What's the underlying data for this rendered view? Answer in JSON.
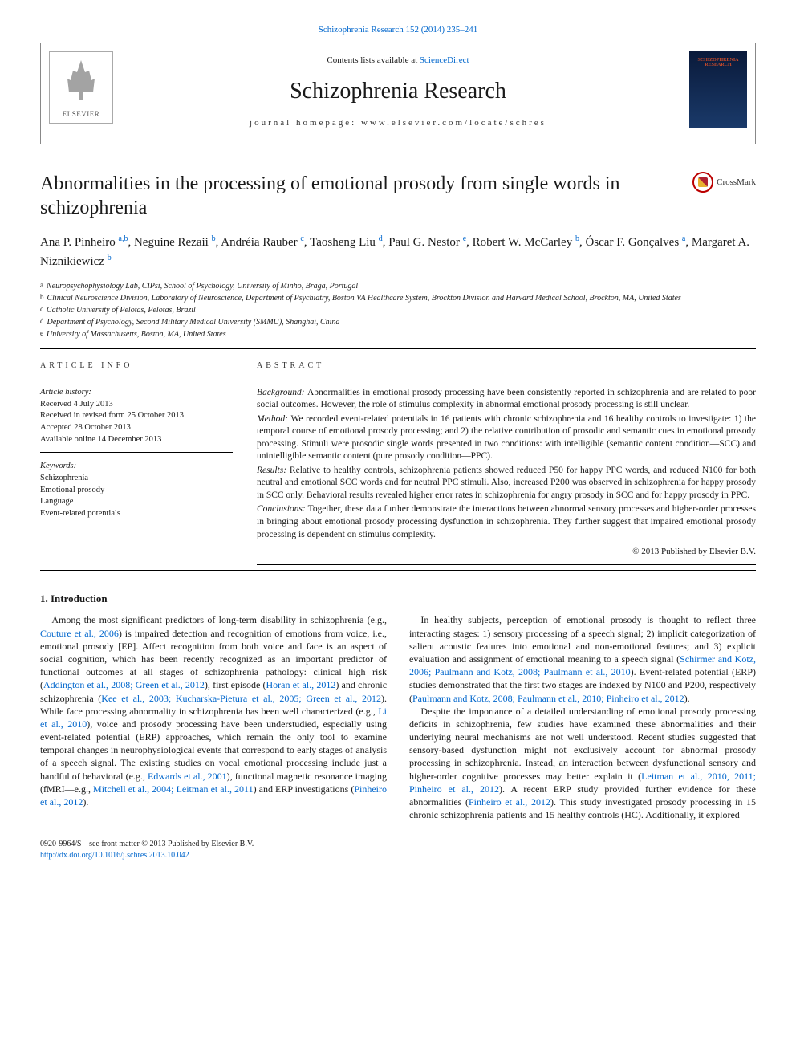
{
  "top_link": {
    "text": "Schizophrenia Research 152 (2014) 235–241"
  },
  "header": {
    "contents_prefix": "Contents lists available at ",
    "contents_link": "ScienceDirect",
    "journal_name": "Schizophrenia Research",
    "homepage_prefix": "journal homepage: ",
    "homepage_url": "www.elsevier.com/locate/schres",
    "elsevier_label": "ELSEVIER",
    "cover_text": "SCHIZOPHRENIA RESEARCH"
  },
  "crossmark_label": "CrossMark",
  "article": {
    "title": "Abnormalities in the processing of emotional prosody from single words in schizophrenia",
    "authors_html_parts": [
      {
        "name": "Ana P. Pinheiro ",
        "sup": "a,b"
      },
      {
        "name": ", Neguine Rezaii ",
        "sup": "b"
      },
      {
        "name": ", Andréia Rauber ",
        "sup": "c"
      },
      {
        "name": ", Taosheng Liu ",
        "sup": "d"
      },
      {
        "name": ", Paul G. Nestor ",
        "sup": "e"
      },
      {
        "name": ", Robert W. McCarley ",
        "sup": "b"
      },
      {
        "name": ", Óscar F. Gonçalves ",
        "sup": "a"
      },
      {
        "name": ", Margaret A. Niznikiewicz ",
        "sup": "b"
      }
    ],
    "affiliations": [
      {
        "sup": "a",
        "text": "Neuropsychophysiology Lab, CIPsi, School of Psychology, University of Minho, Braga, Portugal"
      },
      {
        "sup": "b",
        "text": "Clinical Neuroscience Division, Laboratory of Neuroscience, Department of Psychiatry, Boston VA Healthcare System, Brockton Division and Harvard Medical School, Brockton, MA, United States"
      },
      {
        "sup": "c",
        "text": "Catholic University of Pelotas, Pelotas, Brazil"
      },
      {
        "sup": "d",
        "text": "Department of Psychology, Second Military Medical University (SMMU), Shanghai, China"
      },
      {
        "sup": "e",
        "text": "University of Massachusetts, Boston, MA, United States"
      }
    ]
  },
  "info": {
    "heading": "article info",
    "history_label": "Article history:",
    "history": [
      "Received 4 July 2013",
      "Received in revised form 25 October 2013",
      "Accepted 28 October 2013",
      "Available online 14 December 2013"
    ],
    "keywords_label": "Keywords:",
    "keywords": [
      "Schizophrenia",
      "Emotional prosody",
      "Language",
      "Event-related potentials"
    ]
  },
  "abstract": {
    "heading": "abstract",
    "paras": [
      {
        "label": "Background: ",
        "text": "Abnormalities in emotional prosody processing have been consistently reported in schizophrenia and are related to poor social outcomes. However, the role of stimulus complexity in abnormal emotional prosody processing is still unclear."
      },
      {
        "label": "Method: ",
        "text": "We recorded event-related potentials in 16 patients with chronic schizophrenia and 16 healthy controls to investigate: 1) the temporal course of emotional prosody processing; and 2) the relative contribution of prosodic and semantic cues in emotional prosody processing. Stimuli were prosodic single words presented in two conditions: with intelligible (semantic content condition—SCC) and unintelligible semantic content (pure prosody condition—PPC)."
      },
      {
        "label": "Results: ",
        "text": "Relative to healthy controls, schizophrenia patients showed reduced P50 for happy PPC words, and reduced N100 for both neutral and emotional SCC words and for neutral PPC stimuli. Also, increased P200 was observed in schizophrenia for happy prosody in SCC only. Behavioral results revealed higher error rates in schizophrenia for angry prosody in SCC and for happy prosody in PPC."
      },
      {
        "label": "Conclusions: ",
        "text": "Together, these data further demonstrate the interactions between abnormal sensory processes and higher-order processes in bringing about emotional prosody processing dysfunction in schizophrenia. They further suggest that impaired emotional prosody processing is dependent on stimulus complexity."
      }
    ],
    "copyright": "© 2013 Published by Elsevier B.V."
  },
  "body": {
    "section_heading": "1. Introduction",
    "p1_a": "Among the most significant predictors of long-term disability in schizophrenia (e.g., ",
    "p1_ref1": "Couture et al., 2006",
    "p1_b": ") is impaired detection and recognition of emotions from voice, i.e., emotional prosody [EP]. Affect recognition from both voice and face is an aspect of social cognition, which has been recently recognized as an important predictor of functional outcomes at all stages of schizophrenia pathology: clinical high risk (",
    "p1_ref2": "Addington et al., 2008; Green et al., 2012",
    "p1_c": "), first episode (",
    "p1_ref3": "Horan et al., 2012",
    "p1_d": ") and chronic schizophrenia (",
    "p1_ref4": "Kee et al., 2003; Kucharska-Pietura et al., 2005; Green et al., 2012",
    "p1_e": "). While face processing abnormality in schizophrenia has been well characterized (e.g., ",
    "p1_ref5": "Li et al., 2010",
    "p1_f": "), voice and prosody processing have been understudied, especially using event-related potential (ERP) approaches, which remain the only tool to examine temporal changes in neurophysiological events that correspond to early stages of analysis of a speech signal. The existing studies on vocal emotional processing include just a handful of behavioral (e.g., ",
    "p1_ref6": "Edwards et al., 2001",
    "p1_g": "), functional magnetic resonance imaging (fMRI—e.g., ",
    "p1_ref7": "Mitchell et al., 2004; Leitman et al., 2011",
    "p1_h": ") and ERP investigations (",
    "p1_ref8": "Pinheiro et al., 2012",
    "p1_i": ").",
    "p2_a": "In healthy subjects, perception of emotional prosody is thought to reflect three interacting stages: 1) sensory processing of a speech signal; 2) implicit categorization of salient acoustic features into emotional and non-emotional features; and 3) explicit evaluation and assignment of emotional meaning to a speech signal (",
    "p2_ref1": "Schirmer and Kotz, 2006; Paulmann and Kotz, 2008; Paulmann et al., 2010",
    "p2_b": "). Event-related potential (ERP) studies demonstrated that the first two stages are indexed by N100 and P200, respectively (",
    "p2_ref2": "Paulmann and Kotz, 2008; Paulmann et al., 2010; Pinheiro et al., 2012",
    "p2_c": ").",
    "p3_a": "Despite the importance of a detailed understanding of emotional prosody processing deficits in schizophrenia, few studies have examined these abnormalities and their underlying neural mechanisms are not well understood. Recent studies suggested that sensory-based dysfunction might not exclusively account for abnormal prosody processing in schizophrenia. Instead, an interaction between dysfunctional sensory and higher-order cognitive processes may better explain it (",
    "p3_ref1": "Leitman et al., 2010, 2011; Pinheiro et al., 2012",
    "p3_b": "). A recent ERP study provided further evidence for these abnormalities (",
    "p3_ref2": "Pinheiro et al., 2012",
    "p3_c": "). This study investigated prosody processing in 15 chronic schizophrenia patients and 15 healthy controls (HC). Additionally, it explored"
  },
  "footer": {
    "line1": "0920-9964/$ – see front matter © 2013 Published by Elsevier B.V.",
    "doi": "http://dx.doi.org/10.1016/j.schres.2013.10.042"
  },
  "colors": {
    "link": "#0066cc",
    "text": "#1a1a1a",
    "rule": "#000000",
    "crossmark_ring": "#b02030",
    "cover_bg_top": "#0a1a3a",
    "cover_bg_bottom": "#1a3a6a",
    "cover_title": "#c84a2a"
  }
}
